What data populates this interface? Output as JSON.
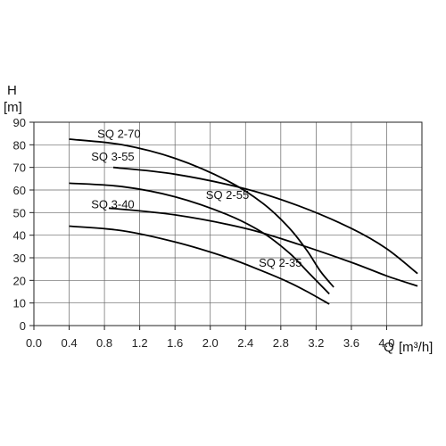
{
  "chart_data": {
    "type": "line",
    "title": "",
    "ylabel_top": "H",
    "ylabel_unit": "[m]",
    "xlabel": "Q",
    "xlabel_unit": "[m³/h]",
    "xlim": [
      0,
      4.4
    ],
    "ylim": [
      0,
      90
    ],
    "grid": true,
    "x_ticks": [
      0.0,
      0.4,
      0.8,
      1.2,
      1.6,
      2.0,
      2.4,
      2.8,
      3.2,
      3.6,
      4.0
    ],
    "x_tick_labels": [
      "0.0",
      "0.4",
      "0.8",
      "1.2",
      "1.6",
      "2.0",
      "2.4",
      "2.8",
      "3.2",
      "3.6",
      "4.0"
    ],
    "y_ticks": [
      0,
      10,
      20,
      30,
      40,
      50,
      60,
      70,
      80,
      90
    ],
    "y_tick_labels": [
      "0",
      "10",
      "20",
      "30",
      "40",
      "50",
      "60",
      "70",
      "80",
      "90"
    ],
    "series": [
      {
        "name": "SQ 2-70",
        "label_x": 0.72,
        "label_y": 83,
        "points": [
          [
            0.4,
            82.5
          ],
          [
            1.0,
            80
          ],
          [
            1.6,
            74
          ],
          [
            2.2,
            64
          ],
          [
            2.6,
            54
          ],
          [
            2.9,
            43
          ],
          [
            3.1,
            33
          ],
          [
            3.25,
            24
          ],
          [
            3.4,
            17
          ]
        ]
      },
      {
        "name": "SQ 3-55",
        "label_x": 0.65,
        "label_y": 73,
        "points": [
          [
            0.9,
            70
          ],
          [
            1.6,
            67
          ],
          [
            2.4,
            60.5
          ],
          [
            3.0,
            53
          ],
          [
            3.6,
            43
          ],
          [
            4.0,
            34
          ],
          [
            4.35,
            23
          ]
        ]
      },
      {
        "name": "SQ 2-55",
        "label_x": 1.95,
        "label_y": 56,
        "points": [
          [
            0.4,
            63
          ],
          [
            1.0,
            61.5
          ],
          [
            1.6,
            57
          ],
          [
            2.2,
            49
          ],
          [
            2.6,
            41
          ],
          [
            2.9,
            32
          ],
          [
            3.1,
            24
          ],
          [
            3.35,
            14
          ]
        ]
      },
      {
        "name": "SQ 3-40",
        "label_x": 0.65,
        "label_y": 52,
        "points": [
          [
            0.85,
            52
          ],
          [
            1.6,
            49
          ],
          [
            2.4,
            43
          ],
          [
            3.0,
            36
          ],
          [
            3.6,
            28
          ],
          [
            4.0,
            22
          ],
          [
            4.35,
            17.5
          ]
        ]
      },
      {
        "name": "SQ 2-35",
        "label_x": 2.55,
        "label_y": 26,
        "points": [
          [
            0.4,
            44
          ],
          [
            1.0,
            42
          ],
          [
            1.6,
            37
          ],
          [
            2.2,
            30
          ],
          [
            2.6,
            24
          ],
          [
            2.9,
            19
          ],
          [
            3.1,
            15
          ],
          [
            3.35,
            9.5
          ]
        ]
      }
    ]
  }
}
